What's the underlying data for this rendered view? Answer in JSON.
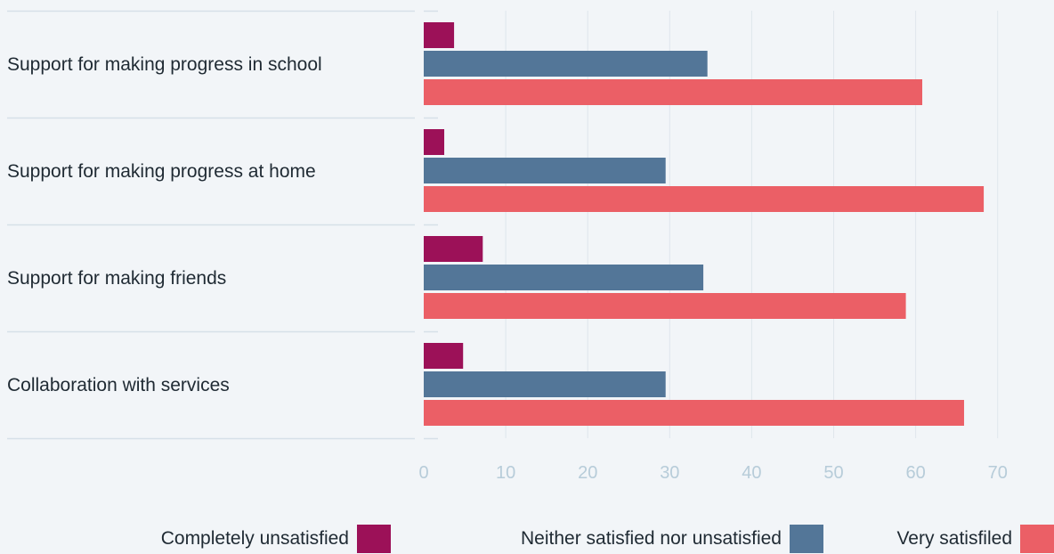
{
  "chart_data": {
    "type": "bar",
    "orientation": "horizontal",
    "categories": [
      "Support for making progress in school",
      "Support for making progress at home",
      "Support for making friends",
      "Collaboration with services"
    ],
    "series": [
      {
        "name": "Completely unsatisfied",
        "color": "#9c1158",
        "values": [
          3.7,
          2.5,
          7.2,
          4.8
        ]
      },
      {
        "name": "Neither satisfied nor unsatisfied",
        "color": "#537698",
        "values": [
          34.6,
          29.5,
          34.1,
          29.5
        ]
      },
      {
        "name": "Very satisfiled",
        "color": "#eb5f66",
        "values": [
          60.8,
          68.3,
          58.8,
          65.9
        ]
      }
    ],
    "x_ticks": [
      0,
      10,
      20,
      30,
      40,
      50,
      60,
      70
    ],
    "xlim": [
      0,
      76
    ],
    "grid": true,
    "legend_position": "bottom"
  }
}
